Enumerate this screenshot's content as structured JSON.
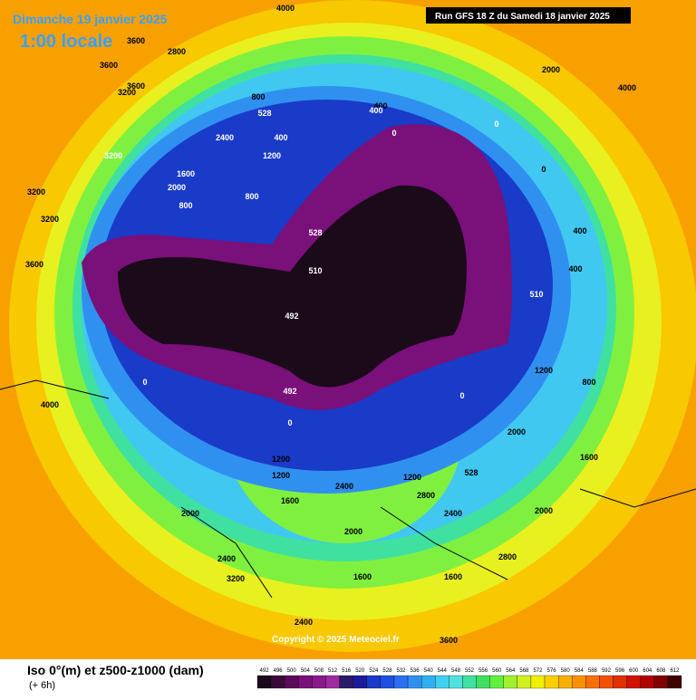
{
  "header": {
    "date": "Dimanche 19 janvier 2025",
    "local_time": "1:00 locale",
    "run": "Run GFS 18 Z du Samedi 18 janvier 2025"
  },
  "footer": {
    "title": "Iso 0°(m) et z500-z1000 (dam)",
    "step": "(+ 6h)",
    "copyright": "Copyright © 2025 Meteociel.fr"
  },
  "legend": {
    "values": [
      492,
      496,
      500,
      504,
      508,
      512,
      516,
      520,
      524,
      528,
      532,
      536,
      540,
      544,
      548,
      552,
      556,
      560,
      564,
      568,
      572,
      576,
      580,
      584,
      588,
      592,
      596,
      600,
      604,
      608,
      612
    ],
    "colors": [
      "#1a0a1a",
      "#3a0a3a",
      "#5a0a5a",
      "#7a107a",
      "#8a1a8a",
      "#a02aa0",
      "#2a1a6a",
      "#1a1a9a",
      "#1a3ac8",
      "#2050e0",
      "#2a70f0",
      "#3090f0",
      "#30b0f0",
      "#40d0f0",
      "#50e0e0",
      "#40e0a0",
      "#40e060",
      "#60f040",
      "#a0f030",
      "#d0f020",
      "#f0f000",
      "#f8d000",
      "#f8b000",
      "#f89000",
      "#f87000",
      "#f05000",
      "#e03000",
      "#d01000",
      "#b00000",
      "#800000",
      "#400000"
    ]
  },
  "contour_labels": [
    "3600",
    "4000",
    "3600",
    "3200",
    "2800",
    "3600",
    "3200",
    "2400",
    "3200",
    "1600",
    "2000",
    "3200",
    "800",
    "3600",
    "800",
    "528",
    "400",
    "1200",
    "800",
    "400",
    "0",
    "510",
    "492",
    "492",
    "528",
    "0",
    "4000",
    "1200",
    "1600",
    "2000",
    "400",
    "0",
    "0",
    "400",
    "2000",
    "4000",
    "1200",
    "510",
    "400",
    "800",
    "1600",
    "2000",
    "2400",
    "2800",
    "528",
    "1200",
    "2000",
    "2400",
    "3200",
    "2800",
    "3600",
    "2400",
    "1600",
    "2000",
    "0",
    "0",
    "1200",
    "2400",
    "1600"
  ]
}
